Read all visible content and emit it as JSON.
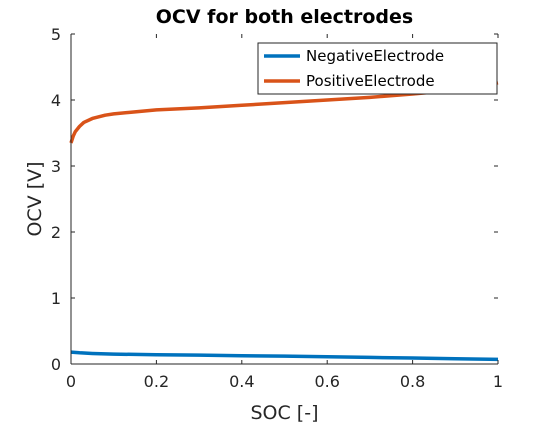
{
  "chart_data": {
    "type": "line",
    "title": "OCV for both electrodes",
    "xlabel": "SOC [-]",
    "ylabel": "OCV [V]",
    "xlim": [
      0,
      1
    ],
    "ylim": [
      0,
      5
    ],
    "xticks": [
      0,
      0.2,
      0.4,
      0.6,
      0.8,
      1
    ],
    "xtick_labels": [
      "0",
      "0.2",
      "0.4",
      "0.6",
      "0.8",
      "1"
    ],
    "yticks": [
      0,
      1,
      2,
      3,
      4,
      5
    ],
    "ytick_labels": [
      "0",
      "1",
      "2",
      "3",
      "4",
      "5"
    ],
    "grid": false,
    "legend_position": "top-right",
    "series": [
      {
        "name": "NegativeElectrode",
        "color": "#0072BD",
        "x": [
          0,
          0.02,
          0.05,
          0.1,
          0.2,
          0.3,
          0.4,
          0.5,
          0.6,
          0.7,
          0.8,
          0.9,
          1.0
        ],
        "y": [
          0.18,
          0.17,
          0.16,
          0.15,
          0.14,
          0.135,
          0.125,
          0.12,
          0.11,
          0.1,
          0.09,
          0.08,
          0.07
        ]
      },
      {
        "name": "PositiveElectrode",
        "color": "#D95319",
        "x": [
          0,
          0.005,
          0.01,
          0.02,
          0.03,
          0.05,
          0.08,
          0.1,
          0.15,
          0.2,
          0.3,
          0.4,
          0.5,
          0.6,
          0.7,
          0.8,
          0.9,
          0.95,
          1.0
        ],
        "y": [
          3.35,
          3.45,
          3.52,
          3.6,
          3.66,
          3.72,
          3.77,
          3.79,
          3.82,
          3.85,
          3.88,
          3.92,
          3.96,
          4.0,
          4.04,
          4.09,
          4.15,
          4.2,
          4.26
        ]
      }
    ]
  }
}
